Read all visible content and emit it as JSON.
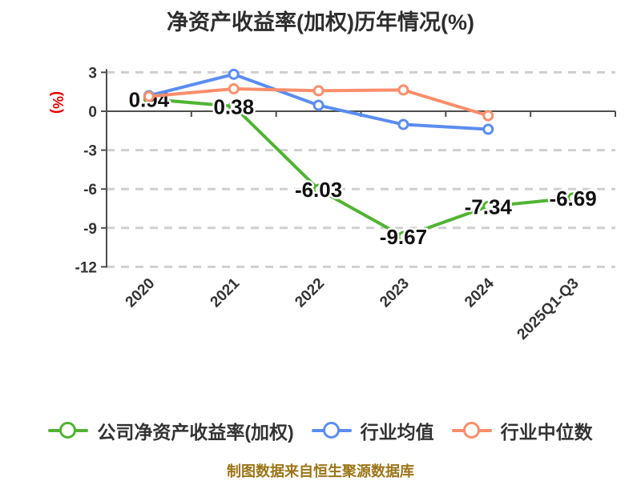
{
  "title": "净资产收益率(加权)历年情况(%)",
  "footer": "制图数据来自恒生聚源数据库",
  "colors": {
    "company_series": "#50b432",
    "industry_mean_series": "#5b8df0",
    "industry_median_series": "#f98e6b",
    "axis_line": "#4d4d4d",
    "tick_label": "#333333",
    "grid_line": "#cfcfcf",
    "axis_name": "#e60000",
    "data_label": "#111111",
    "title_text": "#2e2e2e",
    "footer_text": "#9b7518"
  },
  "chart_data": {
    "type": "line",
    "categories": [
      "2020",
      "2021",
      "2022",
      "2023",
      "2024",
      "2025Q1-Q3"
    ],
    "series": [
      {
        "name": "公司净资产收益率(加权)",
        "color": "#50b432",
        "values": [
          0.94,
          0.38,
          -6.03,
          -9.67,
          -7.34,
          -6.69
        ],
        "point_labels": [
          "0.94",
          "0.38",
          "-6.03",
          "-9.67",
          "-7.34",
          "-6.69"
        ],
        "show_labels": true
      },
      {
        "name": "行业均值",
        "color": "#5b8df0",
        "values": [
          1.2,
          2.85,
          0.46,
          -1.02,
          -1.39
        ],
        "show_labels": false
      },
      {
        "name": "行业中位数",
        "color": "#f98e6b",
        "values": [
          1.14,
          1.73,
          1.58,
          1.64,
          -0.34
        ],
        "show_labels": false
      }
    ],
    "ylabel": "(%)",
    "ylim": [
      -12,
      3
    ],
    "yticks": [
      3,
      0,
      -3,
      -6,
      -9,
      -12
    ],
    "x_label_rotation_deg": 45,
    "grid": "horizontal dashed, solid zero axis",
    "legend_position": "bottom",
    "marker": "white-filled circle with colored ring"
  }
}
